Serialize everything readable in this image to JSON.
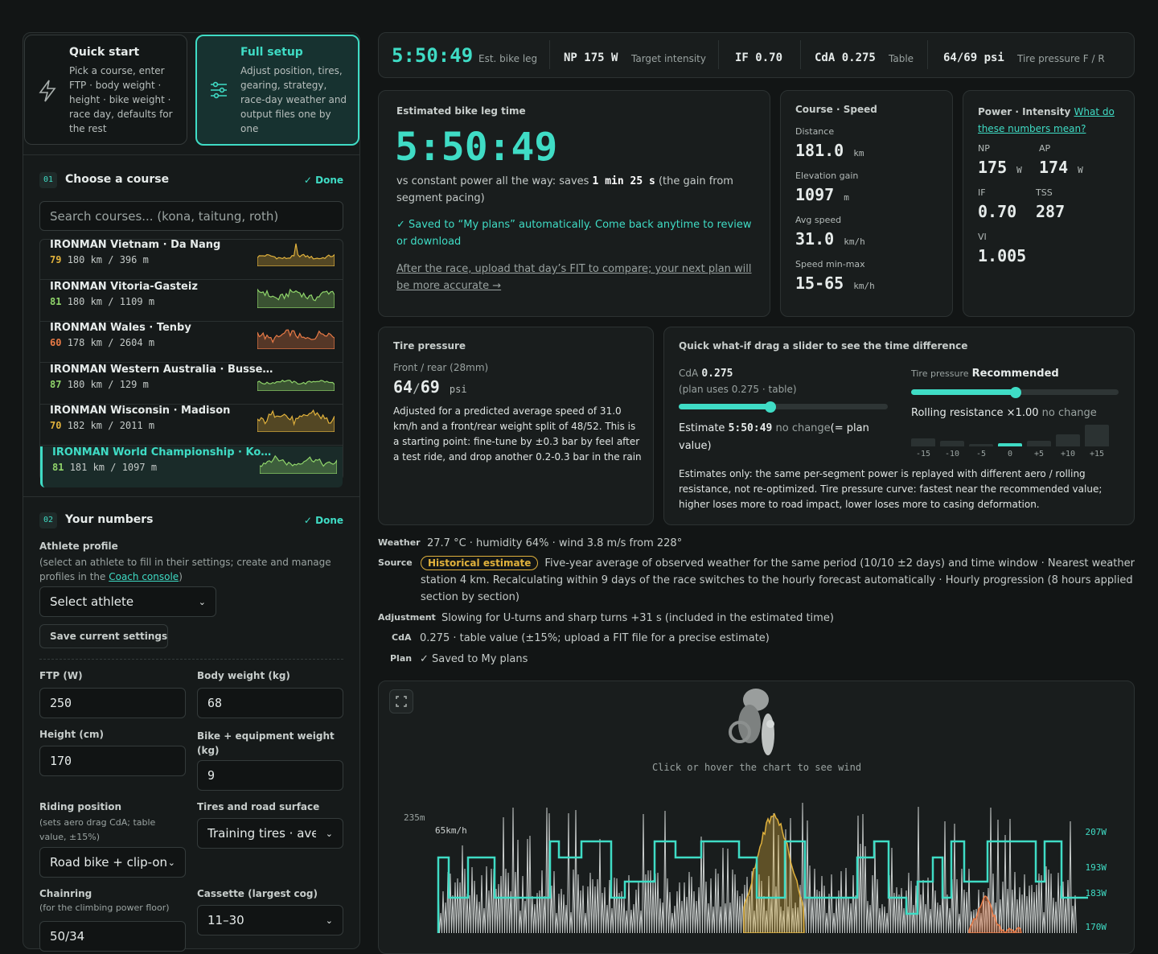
{
  "setup_modes": [
    {
      "title": "Quick start",
      "description": "Pick a course, enter FTP · body weight · height · bike weight · race day, defaults for the rest"
    },
    {
      "title": "Full setup",
      "description": "Adjust position, tires, gearing, strategy, race-day weather and output files one by one"
    }
  ],
  "course_step": {
    "number": "01",
    "title": "Choose a course",
    "status": "✓ Done",
    "search_placeholder": "Search courses... (kona, taitung, roth)",
    "courses": [
      {
        "name": "IRONMAN Vietnam · Da Nang",
        "score": 79,
        "meta": "180 km / 396 m",
        "color": "#e0b13c"
      },
      {
        "name": "IRONMAN Vitoria-Gasteiz",
        "score": 81,
        "meta": "180 km / 1109 m",
        "color": "#8fd46a"
      },
      {
        "name": "IRONMAN Wales · Tenby",
        "score": 60,
        "meta": "178 km / 2604 m",
        "color": "#e87a46"
      },
      {
        "name": "IRONMAN Western Australia · Busse…",
        "score": 87,
        "meta": "180 km / 129 m",
        "color": "#8fd46a"
      },
      {
        "name": "IRONMAN Wisconsin · Madison",
        "score": 70,
        "meta": "182 km / 2011 m",
        "color": "#e0b13c"
      },
      {
        "name": "IRONMAN World Championship · Ko…",
        "score": 81,
        "meta": "181 km / 1097 m",
        "color": "#8fd46a"
      }
    ]
  },
  "numbers_step": {
    "number": "02",
    "title": "Your numbers",
    "status": "✓ Done",
    "athlete_profile": {
      "label": "Athlete profile",
      "hint_before": "(select an athlete to fill in their settings; create and manage profiles in the ",
      "hint_link": "Coach console",
      "hint_after": ")",
      "select": "Select athlete",
      "save_button": "Save current settings"
    },
    "fields": {
      "ftp": {
        "label": "FTP  (W)",
        "value": 250
      },
      "body_weight": {
        "label": "Body weight (kg)",
        "value": 68
      },
      "height": {
        "label": "Height (cm)",
        "value": 170
      },
      "bike_weight": {
        "label": "Bike + equipment weight (kg)",
        "value": 9
      },
      "riding_position": {
        "label": "Riding position",
        "hint": "(sets aero drag CdA; table value, ±15%)",
        "value": "Road bike + clip-on"
      },
      "tires": {
        "label": "Tires and road surface",
        "value": "Training tires · avera"
      },
      "chainring": {
        "label": "Chainring",
        "hint": "(for the climbing power floor)",
        "value": "50/34"
      },
      "cassette": {
        "label": "Cassette (largest cog)",
        "value": "11–30"
      }
    }
  },
  "summary": [
    {
      "value": "5:50:49",
      "label": "Est. bike leg"
    },
    {
      "value": "NP 175 W",
      "label": "Target intensity"
    },
    {
      "value": "IF 0.70"
    },
    {
      "value": "CdA 0.275",
      "label": "Table"
    },
    {
      "value": "64/69 psi",
      "label": "Tire pressure F / R"
    }
  ],
  "estimate_card": {
    "title": "Estimated bike leg time",
    "time": "5:50:49",
    "compare_before": "vs constant power all the way: saves ",
    "compare_gain": "1 min 25 s",
    "compare_after": " (the gain from segment pacing)",
    "saved": "✓ Saved to “My plans” automatically. Come back anytime to review or download",
    "upload": "After the race, upload that day’s FIT to compare; your next plan will be more accurate →"
  },
  "course_speed": {
    "title": "Course · Speed",
    "items": [
      {
        "label": "Distance",
        "value": "181.0",
        "unit": "km"
      },
      {
        "label": "Elevation gain",
        "value": "1097",
        "unit": "m"
      },
      {
        "label": "Avg speed",
        "value": "31.0",
        "unit": "km/h"
      },
      {
        "label": "Speed min-max",
        "value": "15-65",
        "unit": "km/h"
      }
    ]
  },
  "power": {
    "title": "Power · Intensity ",
    "help_link": "What do these numbers mean?",
    "items": [
      {
        "label": "NP",
        "value": "175",
        "unit": "W"
      },
      {
        "label": "AP",
        "value": "174",
        "unit": "W"
      },
      {
        "label": "IF",
        "value": "0.70"
      },
      {
        "label": "TSS",
        "value": "287"
      },
      {
        "label": "VI",
        "value": "1.005"
      }
    ]
  },
  "tire_card": {
    "title": "Tire pressure",
    "subtitle": "Front / rear (28mm)",
    "front": "64",
    "separator": "/",
    "rear": "69",
    "unit": "psi",
    "description": "Adjusted for a predicted average speed of 31.0 km/h and a front/rear weight split of 48/52. This is a starting point: fine-tune by ±0.3 bar by feel after a test ride, and drop another 0.2-0.3 bar in the rain"
  },
  "whatif": {
    "title": "Quick what-if",
    "subtitle": " drag a slider to see the time difference",
    "cda_label": "CdA",
    "cda_value": "0.275",
    "cda_note": "(plan uses 0.275 · table)",
    "estimate_label": "Estimate ",
    "estimate_value": "5:50:49",
    "estimate_status": " no change",
    "estimate_note": "(= plan value)",
    "tire_label": "Tire pressure",
    "tire_value": "Recommended",
    "rolling_label": "Rolling resistance ×1.00",
    "rolling_status": " no change",
    "rolling_ticks": [
      "-15",
      "-10",
      "-5",
      "0",
      "+5",
      "+10",
      "+15"
    ],
    "note": "Estimates only: the same per-segment power is replayed with different aero / rolling resistance, not re-optimized. Tire pressure curve: fastest near the recommended value; higher loses more to road impact, lower loses more to casing deformation."
  },
  "conditions": [
    {
      "label": "Weather",
      "text": "27.7 °C · humidity 64% · wind 3.8 m/s from 228°"
    },
    {
      "label": "Source",
      "badge": "Historical estimate",
      "text": "Five-year average of observed weather for the same period (10/10 ±2 days) and time window · Nearest weather station 4 km. Recalculating within 9 days of the race switches to the hourly forecast automatically · Hourly progression (8 hours applied section by section)"
    },
    {
      "label": "Adjustment",
      "text": "Slowing for U-turns and sharp turns +31 s (included in the estimated time)"
    },
    {
      "label": "CdA",
      "text": "0.275 · table value (±15%; upload a FIT file for a precise estimate)"
    },
    {
      "label": "Plan",
      "text": "✓ Saved to My plans"
    }
  ],
  "profile_chart": {
    "hint": "Click or hover the chart to see wind",
    "elevation_label": "235m",
    "speed_label": "65km/h",
    "power_labels": [
      "207W",
      "193W",
      "183W",
      "170W"
    ]
  }
}
